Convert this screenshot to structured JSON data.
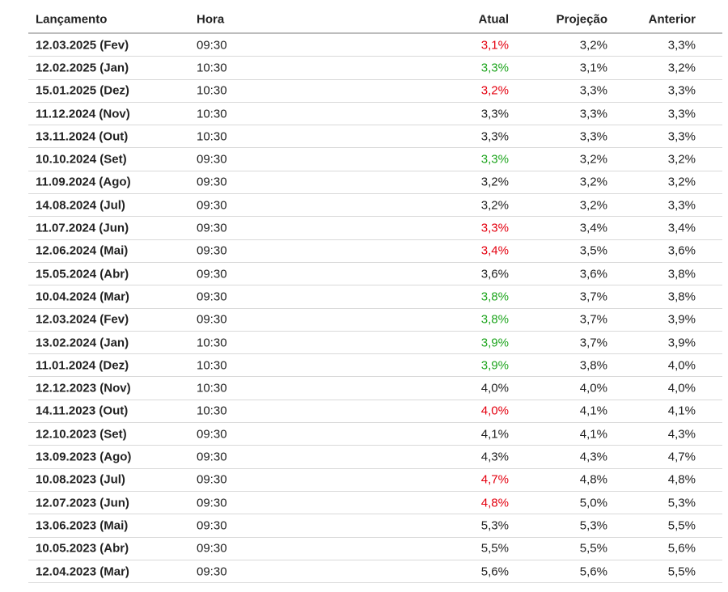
{
  "table": {
    "header": [
      "Lançamento",
      "Hora",
      "Atual",
      "Projeção",
      "Anterior"
    ],
    "rows": [
      [
        "12.03.2025 (Fev)",
        "09:30",
        "3,1%",
        "3,2%",
        "3,3%"
      ],
      [
        "12.02.2025 (Jan)",
        "10:30",
        "3,3%",
        "3,1%",
        "3,2%"
      ],
      [
        "15.01.2025 (Dez)",
        "10:30",
        "3,2%",
        "3,3%",
        "3,3%"
      ],
      [
        "11.12.2024 (Nov)",
        "10:30",
        "3,3%",
        "3,3%",
        "3,3%"
      ],
      [
        "13.11.2024 (Out)",
        "10:30",
        "3,3%",
        "3,3%",
        "3,3%"
      ],
      [
        "10.10.2024 (Set)",
        "09:30",
        "3,3%",
        "3,2%",
        "3,2%"
      ],
      [
        "11.09.2024 (Ago)",
        "09:30",
        "3,2%",
        "3,2%",
        "3,2%"
      ],
      [
        "14.08.2024 (Jul)",
        "09:30",
        "3,2%",
        "3,2%",
        "3,3%"
      ],
      [
        "11.07.2024 (Jun)",
        "09:30",
        "3,3%",
        "3,4%",
        "3,4%"
      ],
      [
        "12.06.2024 (Mai)",
        "09:30",
        "3,4%",
        "3,5%",
        "3,6%"
      ],
      [
        "15.05.2024 (Abr)",
        "09:30",
        "3,6%",
        "3,6%",
        "3,8%"
      ],
      [
        "10.04.2024 (Mar)",
        "09:30",
        "3,8%",
        "3,7%",
        "3,8%"
      ],
      [
        "12.03.2024 (Fev)",
        "09:30",
        "3,8%",
        "3,7%",
        "3,9%"
      ],
      [
        "13.02.2024 (Jan)",
        "10:30",
        "3,9%",
        "3,7%",
        "3,9%"
      ],
      [
        "11.01.2024 (Dez)",
        "10:30",
        "3,9%",
        "3,8%",
        "4,0%"
      ],
      [
        "12.12.2023 (Nov)",
        "10:30",
        "4,0%",
        "4,0%",
        "4,0%"
      ],
      [
        "14.11.2023 (Out)",
        "10:30",
        "4,0%",
        "4,1%",
        "4,1%"
      ],
      [
        "12.10.2023 (Set)",
        "09:30",
        "4,1%",
        "4,1%",
        "4,3%"
      ],
      [
        "13.09.2023 (Ago)",
        "09:30",
        "4,3%",
        "4,3%",
        "4,7%"
      ],
      [
        "10.08.2023 (Jul)",
        "09:30",
        "4,7%",
        "4,8%",
        "4,8%"
      ],
      [
        "12.07.2023 (Jun)",
        "09:30",
        "4,8%",
        "5,0%",
        "5,3%"
      ],
      [
        "13.06.2023 (Mai)",
        "09:30",
        "5,3%",
        "5,3%",
        "5,5%"
      ],
      [
        "10.05.2023 (Abr)",
        "09:30",
        "5,5%",
        "5,5%",
        "5,6%"
      ],
      [
        "12.04.2023 (Mar)",
        "09:30",
        "5,6%",
        "5,6%",
        "5,5%"
      ]
    ],
    "actual_colors": [
      "#e4000f",
      "#1ea51e",
      "#e4000f",
      "#222",
      "#222",
      "#1ea51e",
      "#222",
      "#222",
      "#e4000f",
      "#e4000f",
      "#222",
      "#1ea51e",
      "#1ea51e",
      "#1ea51e",
      "#1ea51e",
      "#222",
      "#e4000f",
      "#222",
      "#222",
      "#e4000f",
      "#e4000f",
      "#222",
      "#222",
      "#222"
    ]
  }
}
